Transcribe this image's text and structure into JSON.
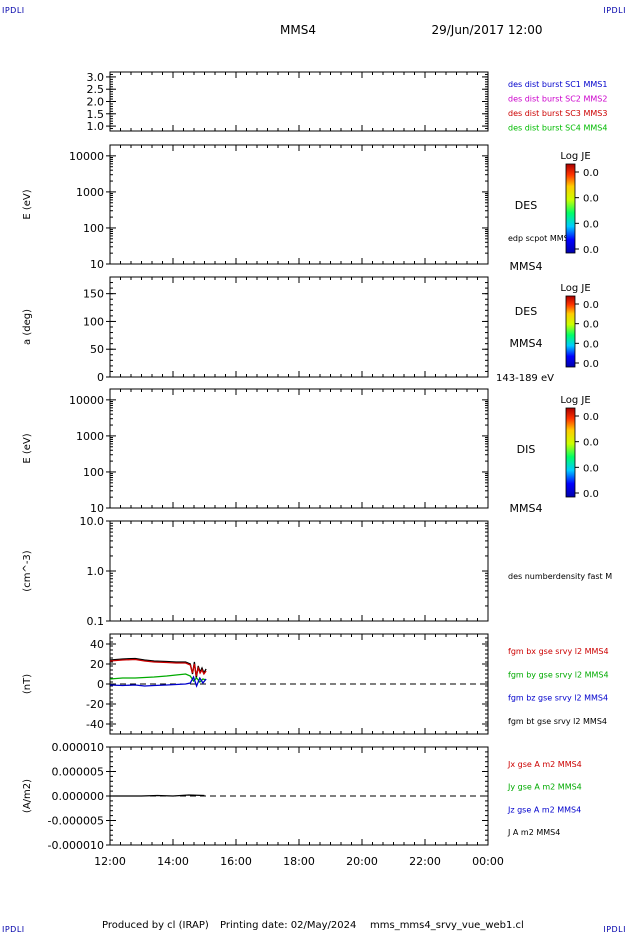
{
  "header": {
    "mission": "MMS4",
    "datetime": "29/Jun/2017 12:00",
    "corner_label": "IPDLI"
  },
  "footer": {
    "producer": "Produced by cl (IRAP)",
    "printing_date": "Printing date: 02/May/2024",
    "script": "mms_mms4_srvy_vue_web1.cl"
  },
  "chart_data": [
    {
      "id": "panel1",
      "type": "line",
      "ylabel": "",
      "yscale": "linear",
      "ylim": [
        0.8,
        3.2
      ],
      "yticks": [
        1.0,
        1.5,
        2.0,
        2.5,
        3.0
      ],
      "yticklabels": [
        "1.0",
        "1.5",
        "2.0",
        "2.5",
        "3.0"
      ],
      "legend": [
        {
          "text": "des dist burst SC1 MMS1",
          "color": "#0000cc"
        },
        {
          "text": "des dist burst SC2 MMS2",
          "color": "#cc00cc"
        },
        {
          "text": "des dist burst SC3 MMS3",
          "color": "#cc0000"
        },
        {
          "text": "des dist burst SC4 MMS4",
          "color": "#00bb00"
        }
      ],
      "series": []
    },
    {
      "id": "panel2",
      "type": "heatmap",
      "ylabel": "E (eV)",
      "yscale": "log",
      "ylim": [
        10,
        20000
      ],
      "yticks": [
        10,
        100,
        1000,
        10000
      ],
      "yticklabels": [
        "10",
        "100",
        "1000",
        "10000"
      ],
      "instrument": "DES",
      "side_label": "edp scpot MMS4",
      "bottom_label": "MMS4",
      "colorbar": {
        "title": "Log JE",
        "ticks": [
          "0.0",
          "0.0",
          "0.0",
          "0.0"
        ]
      }
    },
    {
      "id": "panel3",
      "type": "heatmap",
      "ylabel": "a (deg)",
      "yscale": "linear",
      "ylim": [
        0,
        180
      ],
      "yticks": [
        0,
        50,
        100,
        150
      ],
      "yticklabels": [
        "0",
        "50",
        "100",
        "150"
      ],
      "instrument": "DES",
      "mid_label": "MMS4",
      "bottom_label": "143-189 eV",
      "colorbar": {
        "title": "Log JE",
        "ticks": [
          "0.0",
          "0.0",
          "0.0",
          "0.0"
        ]
      }
    },
    {
      "id": "panel4",
      "type": "heatmap",
      "ylabel": "E (eV)",
      "yscale": "log",
      "ylim": [
        10,
        20000
      ],
      "yticks": [
        10,
        100,
        1000,
        10000
      ],
      "yticklabels": [
        "10",
        "100",
        "1000",
        "10000"
      ],
      "instrument": "DIS",
      "bottom_label": "MMS4",
      "colorbar": {
        "title": "Log JE",
        "ticks": [
          "0.0",
          "0.0",
          "0.0",
          "0.0"
        ]
      }
    },
    {
      "id": "panel5",
      "type": "line",
      "ylabel": "(cm^-3)",
      "yscale": "log",
      "ylim": [
        0.1,
        10
      ],
      "yticks": [
        0.1,
        1,
        10
      ],
      "yticklabels": [
        "0.1",
        "1.0",
        "10.0"
      ],
      "side_label": "des numberdensity fast M",
      "series": []
    },
    {
      "id": "panel6",
      "type": "line",
      "ylabel": "(nT)",
      "yscale": "linear",
      "ylim": [
        -50,
        50
      ],
      "yticks": [
        -40,
        -20,
        0,
        20,
        40
      ],
      "yticklabels": [
        "-40",
        "-20",
        "0",
        "20",
        "40"
      ],
      "zero_line": true,
      "legend": [
        {
          "text": "fgm bx gse srvy l2 MMS4",
          "color": "#cc0000"
        },
        {
          "text": "fgm by gse srvy l2 MMS4",
          "color": "#00aa00"
        },
        {
          "text": "fgm bz gse srvy l2 MMS4",
          "color": "#0000cc"
        },
        {
          "text": "fgm bt gse srvy l2 MMS4",
          "color": "#000000"
        }
      ],
      "series": [
        {
          "color": "#000000",
          "x": [
            12.0,
            12.4,
            12.8,
            13.1,
            13.4,
            13.8,
            14.1,
            14.4,
            14.55,
            14.62,
            14.68,
            14.74,
            14.8,
            14.86,
            14.92,
            14.98,
            15.05
          ],
          "y": [
            24,
            25,
            25.5,
            24,
            23,
            22.5,
            22,
            22,
            20,
            10,
            22,
            6,
            18,
            12,
            16,
            11,
            15
          ]
        },
        {
          "color": "#cc0000",
          "x": [
            12.0,
            12.4,
            12.8,
            13.1,
            13.4,
            13.8,
            14.1,
            14.4,
            14.55,
            14.62,
            14.68,
            14.74,
            14.8,
            14.86,
            14.92,
            14.98,
            15.05
          ],
          "y": [
            23,
            24,
            24.5,
            23,
            22,
            21.5,
            21,
            21,
            19,
            11,
            20,
            8,
            16,
            11,
            14,
            10,
            13
          ]
        },
        {
          "color": "#00aa00",
          "x": [
            12.0,
            12.4,
            12.8,
            13.1,
            13.4,
            13.8,
            14.1,
            14.4,
            14.55,
            14.65,
            14.75,
            14.85,
            14.95,
            15.05
          ],
          "y": [
            5,
            6,
            6,
            6.5,
            7,
            8,
            9,
            10,
            8,
            3,
            6,
            2,
            5,
            4
          ]
        },
        {
          "color": "#0000cc",
          "x": [
            12.0,
            12.4,
            12.8,
            13.1,
            13.4,
            13.8,
            14.1,
            14.4,
            14.55,
            14.65,
            14.75,
            14.85,
            14.95,
            15.05
          ],
          "y": [
            -1,
            -1.5,
            -1,
            -2,
            -1.5,
            -1,
            -0.5,
            0,
            1,
            7,
            -2,
            6,
            1,
            5
          ]
        }
      ]
    },
    {
      "id": "panel7",
      "type": "line",
      "ylabel": "(A/m2)",
      "yscale": "linear",
      "ylim": [
        -1e-05,
        1e-05
      ],
      "yticks": [
        -1e-05,
        -5e-06,
        0,
        5e-06,
        1e-05
      ],
      "yticklabels": [
        "-0.000010",
        "-0.000005",
        "0.000000",
        "0.000005",
        "0.000010"
      ],
      "zero_line": true,
      "legend": [
        {
          "text": "Jx gse A m2 MMS4",
          "color": "#cc0000"
        },
        {
          "text": "Jy gse A m2 MMS4",
          "color": "#00aa00"
        },
        {
          "text": "Jz gse A m2 MMS4",
          "color": "#0000cc"
        },
        {
          "text": "J A m2 MMS4",
          "color": "#000000"
        }
      ],
      "series": [
        {
          "color": "#000000",
          "x": [
            12.0,
            13.0,
            13.5,
            14.0,
            14.5,
            15.0
          ],
          "y": [
            0,
            0,
            1e-07,
            0,
            2e-07,
            1e-07
          ]
        }
      ]
    }
  ],
  "xaxis": {
    "xlim": [
      12,
      24
    ],
    "ticks": [
      12,
      14,
      16,
      18,
      20,
      22,
      24
    ],
    "ticklabels": [
      "12:00",
      "14:00",
      "16:00",
      "18:00",
      "20:00",
      "22:00",
      "00:00"
    ]
  }
}
